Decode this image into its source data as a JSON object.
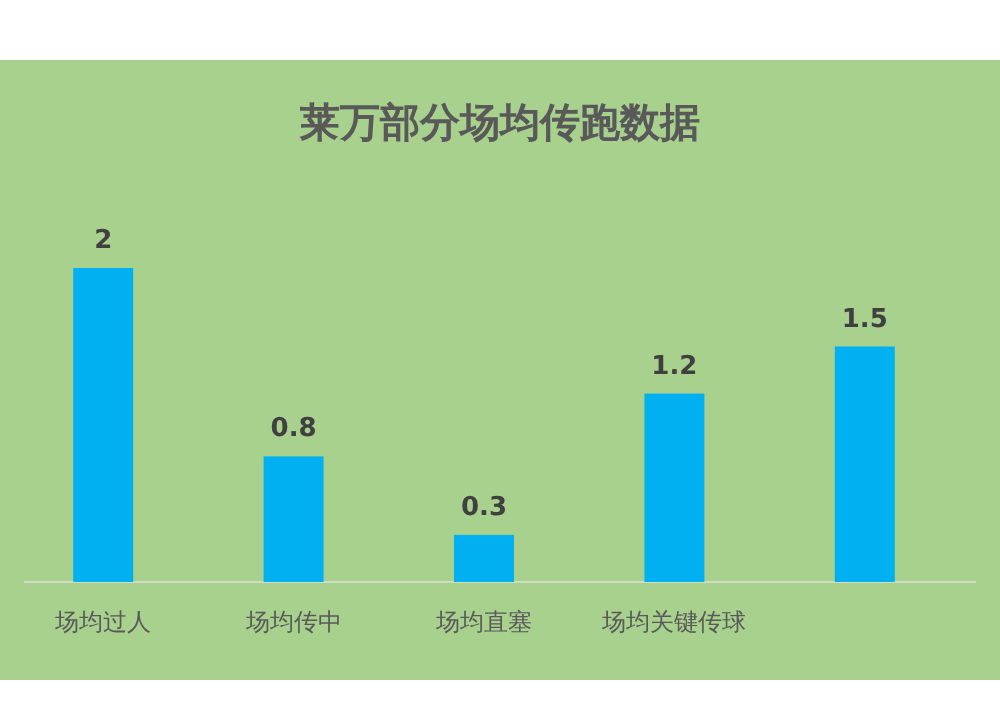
{
  "chart_data": {
    "type": "bar",
    "title": "莱万部分场均传跑数据",
    "categories": [
      "场均过人",
      "场均传中",
      "场均直塞",
      "场均关键传球",
      null
    ],
    "values": [
      2,
      0.8,
      0.3,
      1.2,
      1.5
    ],
    "color": "#00b0f0",
    "data_labels": true
  }
}
